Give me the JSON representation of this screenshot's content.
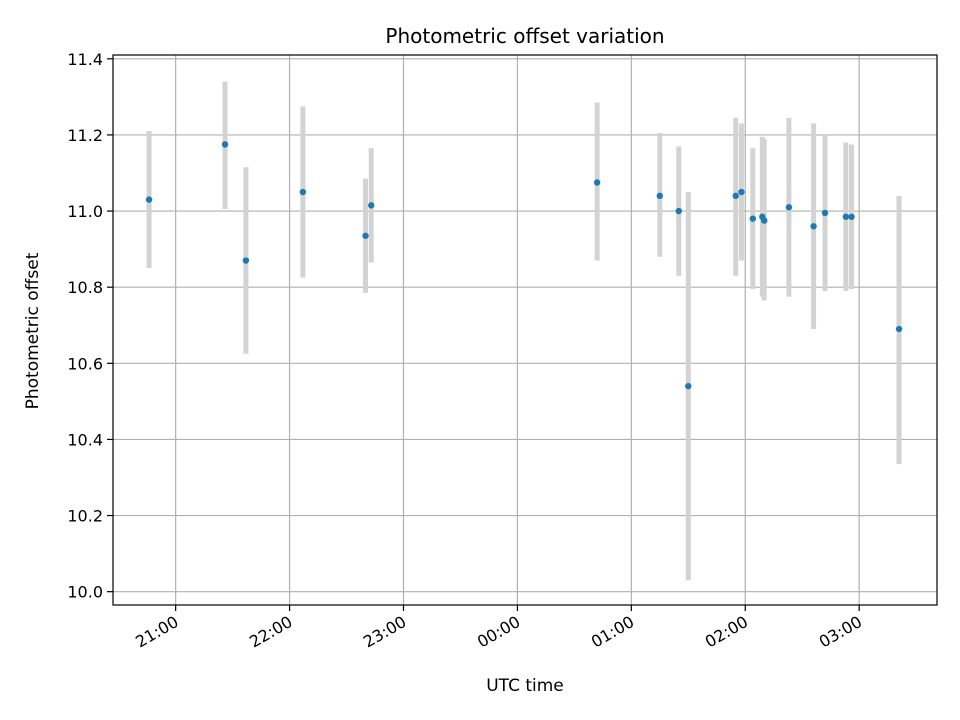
{
  "chart_data": {
    "type": "scatter",
    "title": "Photometric offset variation",
    "xlabel": "UTC time",
    "ylabel": "Photometric offset",
    "x_axis": {
      "kind": "time",
      "range": [
        "20:27",
        "03:41"
      ],
      "ticks": [
        "21:00",
        "22:00",
        "23:00",
        "00:00",
        "01:00",
        "02:00",
        "03:00"
      ],
      "tick_rotation_deg": 30
    },
    "y_axis": {
      "range": [
        9.965,
        11.41
      ],
      "ticks": [
        "10.0",
        "10.2",
        "10.4",
        "10.6",
        "10.8",
        "11.0",
        "11.2",
        "11.4"
      ]
    },
    "grid": true,
    "colors": {
      "marker": "#1f77b4",
      "errorbar": "#d3d3d3",
      "grid": "#b0b0b0",
      "axes": "#000000"
    },
    "points": [
      {
        "time": "20:46",
        "value": 11.03,
        "low": 10.85,
        "high": 11.21
      },
      {
        "time": "21:26",
        "value": 11.175,
        "low": 11.005,
        "high": 11.34
      },
      {
        "time": "21:37",
        "value": 10.87,
        "low": 10.625,
        "high": 11.115
      },
      {
        "time": "22:07",
        "value": 11.05,
        "low": 10.825,
        "high": 11.275
      },
      {
        "time": "22:40",
        "value": 10.935,
        "low": 10.785,
        "high": 11.085
      },
      {
        "time": "22:43",
        "value": 11.015,
        "low": 10.865,
        "high": 11.165
      },
      {
        "time": "00:42",
        "value": 11.075,
        "low": 10.87,
        "high": 11.285
      },
      {
        "time": "01:15",
        "value": 11.04,
        "low": 10.88,
        "high": 11.205
      },
      {
        "time": "01:25",
        "value": 11.0,
        "low": 10.83,
        "high": 11.17
      },
      {
        "time": "01:30",
        "value": 10.54,
        "low": 10.03,
        "high": 11.05
      },
      {
        "time": "01:55",
        "value": 11.04,
        "low": 10.83,
        "high": 11.245
      },
      {
        "time": "01:58",
        "value": 11.05,
        "low": 10.87,
        "high": 11.23
      },
      {
        "time": "02:04",
        "value": 10.98,
        "low": 10.795,
        "high": 11.165
      },
      {
        "time": "02:09",
        "value": 10.985,
        "low": 10.775,
        "high": 11.195
      },
      {
        "time": "02:10",
        "value": 10.975,
        "low": 10.765,
        "high": 11.19
      },
      {
        "time": "02:23",
        "value": 11.01,
        "low": 10.775,
        "high": 11.245
      },
      {
        "time": "02:36",
        "value": 10.96,
        "low": 10.69,
        "high": 11.23
      },
      {
        "time": "02:42",
        "value": 10.995,
        "low": 10.79,
        "high": 11.2
      },
      {
        "time": "02:53",
        "value": 10.985,
        "low": 10.79,
        "high": 11.18
      },
      {
        "time": "02:56",
        "value": 10.985,
        "low": 10.795,
        "high": 11.175
      },
      {
        "time": "03:21",
        "value": 10.69,
        "low": 10.335,
        "high": 11.04
      }
    ]
  }
}
